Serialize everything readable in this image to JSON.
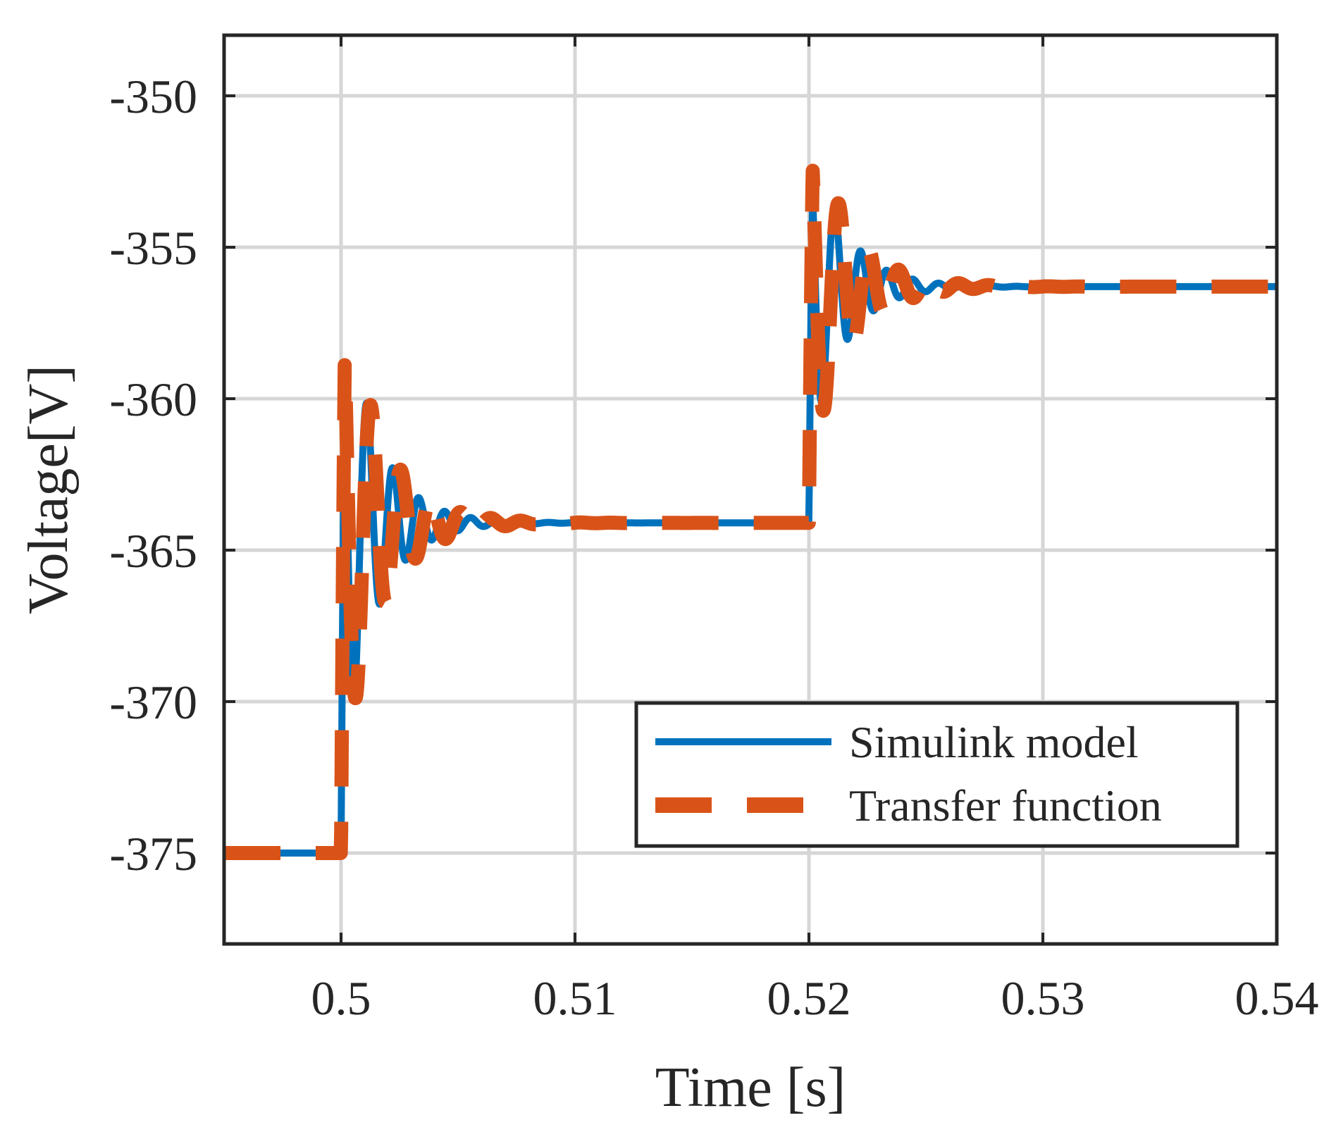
{
  "chart_data": {
    "type": "line",
    "title": "",
    "xlabel": "Time [s]",
    "ylabel": "Voltage[V]",
    "xlim": [
      0.495,
      0.54
    ],
    "ylim": [
      -378,
      -348
    ],
    "xticks": [
      0.5,
      0.51,
      0.52,
      0.53,
      0.54
    ],
    "xtick_labels": [
      "0.5",
      "0.51",
      "0.52",
      "0.53",
      "0.54"
    ],
    "yticks": [
      -350,
      -355,
      -360,
      -365,
      -370,
      -375
    ],
    "ytick_labels": [
      "-350",
      "-355",
      "-360",
      "-365",
      "-370",
      "-375"
    ],
    "grid": true,
    "legend_position": "bottom-right",
    "series": [
      {
        "name": "Simulink model",
        "color": "#0072BD",
        "style": "solid",
        "step_events": [
          {
            "t0": 0.5,
            "from": -375,
            "to": -364.1,
            "initial_overshoot": 8.55,
            "freq_hz": 900,
            "decay_per_s": 700
          },
          {
            "t0": 0.52,
            "from": -364.1,
            "to": -356.3,
            "initial_overshoot": 5.55,
            "freq_hz": 900,
            "decay_per_s": 700
          }
        ]
      },
      {
        "name": "Transfer function",
        "color": "#D95319",
        "style": "dashed",
        "step_events": [
          {
            "t0": 0.5,
            "from": -375,
            "to": -364.1,
            "initial_overshoot": 8.55,
            "freq_hz": 780,
            "decay_per_s": 620
          },
          {
            "t0": 0.52,
            "from": -364.1,
            "to": -356.3,
            "initial_overshoot": 6.05,
            "freq_hz": 780,
            "decay_per_s": 620
          }
        ]
      }
    ]
  }
}
